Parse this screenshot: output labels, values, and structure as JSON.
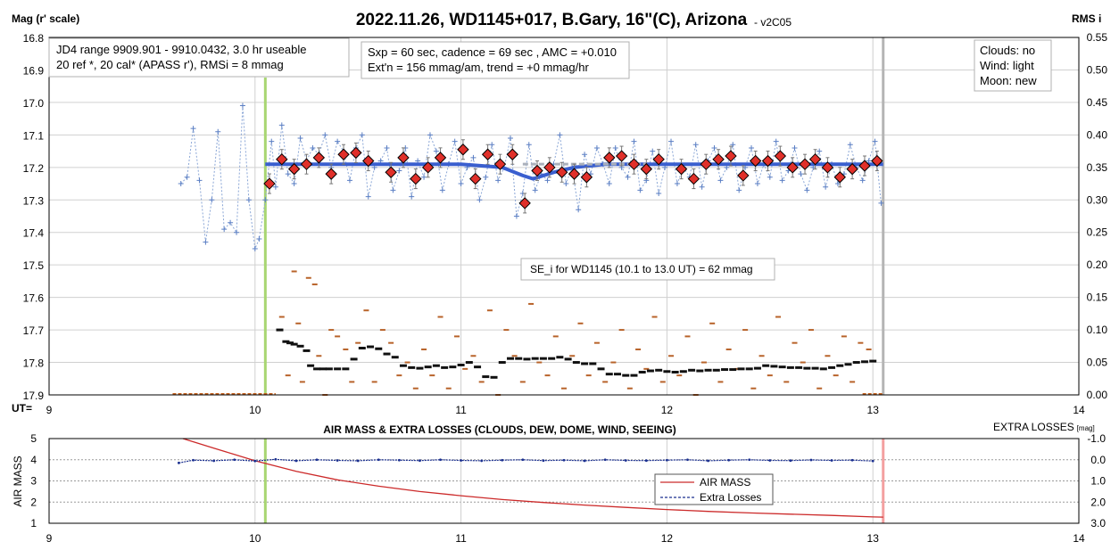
{
  "chart_data": [
    {
      "type": "scatter",
      "title": "2022.11.26, WD1145+017, B.Gary, 16\"(C), Arizona",
      "version": "- v2C05",
      "ylabel_left": "Mag (r' scale)",
      "ylabel_right": "RMS i",
      "xlabel": "UT=",
      "xlim": [
        9,
        14
      ],
      "xticks": [
        "9",
        "10",
        "11",
        "12",
        "13",
        "14"
      ],
      "ylim_left": [
        16.8,
        17.9
      ],
      "yticks_left": [
        "16.8",
        "16.9",
        "17.0",
        "17.1",
        "17.2",
        "17.3",
        "17.4",
        "17.5",
        "17.6",
        "17.7",
        "17.8",
        "17.9"
      ],
      "ylim_right": [
        0,
        0.55
      ],
      "yticks_right": [
        "0.55",
        "0.50",
        "0.45",
        "0.40",
        "0.35",
        "0.30",
        "0.25",
        "0.20",
        "0.15",
        "0.10",
        "0.05",
        "0.00"
      ],
      "info_box_1": [
        "JD4 range 9909.901 - 9910.0432, 3.0 hr useable",
        "20 ref *, 20 cal*  (APASS r'), RMSi = 8 mmag"
      ],
      "info_box_2": [
        "Sxp = 60 sec, cadence = 69 sec , AMC = +0.010",
        "Ext'n = 156 mmag/am, trend = +0 mmag/hr"
      ],
      "info_box_3": [
        "Clouds: no",
        "Wind:  light",
        "Moon:  new"
      ],
      "annotation": "SE_i for WD1145 (10.1 to 13.0 UT) = 62 mmag",
      "markers": {
        "green_start": 10.05,
        "gray_end": 13.05
      },
      "binned_points": {
        "x": [
          10.07,
          10.13,
          10.19,
          10.25,
          10.31,
          10.37,
          10.43,
          10.49,
          10.55,
          10.66,
          10.72,
          10.78,
          10.84,
          10.9,
          11.01,
          11.07,
          11.13,
          11.19,
          11.25,
          11.31,
          11.37,
          11.43,
          11.49,
          11.55,
          11.61,
          11.72,
          11.78,
          11.84,
          11.9,
          11.96,
          12.07,
          12.13,
          12.19,
          12.25,
          12.31,
          12.37,
          12.43,
          12.49,
          12.55,
          12.61,
          12.67,
          12.72,
          12.78,
          12.84,
          12.9,
          12.96,
          13.02
        ],
        "y": [
          17.25,
          17.175,
          17.205,
          17.19,
          17.17,
          17.22,
          17.16,
          17.155,
          17.18,
          17.215,
          17.17,
          17.235,
          17.2,
          17.17,
          17.145,
          17.235,
          17.16,
          17.19,
          17.16,
          17.31,
          17.21,
          17.2,
          17.215,
          17.22,
          17.23,
          17.17,
          17.165,
          17.19,
          17.205,
          17.175,
          17.205,
          17.235,
          17.19,
          17.175,
          17.165,
          17.225,
          17.18,
          17.18,
          17.165,
          17.2,
          17.19,
          17.175,
          17.2,
          17.23,
          17.205,
          17.195,
          17.18
        ]
      },
      "unbinned_points": {
        "x": [
          9.64,
          9.67,
          9.7,
          9.73,
          9.76,
          9.79,
          9.82,
          9.85,
          9.88,
          9.91,
          9.94,
          9.97,
          10.0,
          10.02,
          10.05,
          10.08,
          10.1,
          10.13,
          10.16,
          10.19,
          10.22,
          10.25,
          10.28,
          10.31,
          10.34,
          10.37,
          10.4,
          10.43,
          10.46,
          10.49,
          10.52,
          10.55,
          10.58,
          10.61,
          10.64,
          10.67,
          10.7,
          10.73,
          10.76,
          10.79,
          10.82,
          10.85,
          10.88,
          10.91,
          10.94,
          10.97,
          11.0,
          11.03,
          11.06,
          11.09,
          11.12,
          11.15,
          11.18,
          11.21,
          11.24,
          11.27,
          11.3,
          11.33,
          11.36,
          11.39,
          11.42,
          11.45,
          11.48,
          11.51,
          11.54,
          11.57,
          11.6,
          11.63,
          11.66,
          11.69,
          11.72,
          11.75,
          11.78,
          11.81,
          11.84,
          11.87,
          11.9,
          11.93,
          11.96,
          11.99,
          12.02,
          12.05,
          12.08,
          12.11,
          12.14,
          12.17,
          12.2,
          12.23,
          12.26,
          12.29,
          12.32,
          12.35,
          12.38,
          12.41,
          12.44,
          12.47,
          12.5,
          12.53,
          12.56,
          12.59,
          12.62,
          12.65,
          12.68,
          12.71,
          12.74,
          12.77,
          12.8,
          12.83,
          12.86,
          12.89,
          12.92,
          12.95,
          12.98,
          13.01,
          13.04
        ],
        "y": [
          17.25,
          17.23,
          17.08,
          17.24,
          17.43,
          17.3,
          17.09,
          17.39,
          17.37,
          17.4,
          17.01,
          17.3,
          17.45,
          17.42,
          17.3,
          17.12,
          17.26,
          17.07,
          17.22,
          17.25,
          17.11,
          17.18,
          17.14,
          17.16,
          17.1,
          17.2,
          17.12,
          17.15,
          17.24,
          17.14,
          17.1,
          17.29,
          17.2,
          17.18,
          17.14,
          17.27,
          17.21,
          17.14,
          17.29,
          17.18,
          17.23,
          17.1,
          17.15,
          17.27,
          17.19,
          17.12,
          17.25,
          17.2,
          17.17,
          17.3,
          17.23,
          17.13,
          17.24,
          17.2,
          17.11,
          17.35,
          17.28,
          17.13,
          17.27,
          17.22,
          17.24,
          17.19,
          17.1,
          17.25,
          17.2,
          17.33,
          17.16,
          17.22,
          17.14,
          17.19,
          17.25,
          17.14,
          17.2,
          17.23,
          17.12,
          17.27,
          17.24,
          17.15,
          17.28,
          17.2,
          17.12,
          17.25,
          17.2,
          17.23,
          17.13,
          17.26,
          17.18,
          17.14,
          17.24,
          17.2,
          17.13,
          17.27,
          17.2,
          17.14,
          17.25,
          17.19,
          17.23,
          17.12,
          17.24,
          17.21,
          17.14,
          17.22,
          17.27,
          17.2,
          17.15,
          17.26,
          17.19,
          17.25,
          17.22,
          17.13,
          17.2,
          17.24,
          17.18,
          17.12,
          17.31
        ]
      },
      "trend_line": {
        "x": [
          10.05,
          11.0,
          11.2,
          11.3,
          11.35,
          11.45,
          11.55,
          11.7,
          13.05
        ],
        "y": [
          17.19,
          17.19,
          17.2,
          17.225,
          17.235,
          17.215,
          17.2,
          17.19,
          17.19
        ]
      },
      "rms_series": {
        "x": [
          10.12,
          10.15,
          10.17,
          10.19,
          10.22,
          10.25,
          10.27,
          10.3,
          10.33,
          10.36,
          10.4,
          10.44,
          10.48,
          10.52,
          10.56,
          10.6,
          10.64,
          10.68,
          10.72,
          10.76,
          10.8,
          10.84,
          10.88,
          10.92,
          10.96,
          11.0,
          11.04,
          11.08,
          11.12,
          11.16,
          11.2,
          11.24,
          11.28,
          11.32,
          11.36,
          11.4,
          11.44,
          11.48,
          11.52,
          11.56,
          11.6,
          11.64,
          11.68,
          11.72,
          11.76,
          11.8,
          11.84,
          11.88,
          11.92,
          11.96,
          12.0,
          12.04,
          12.08,
          12.12,
          12.16,
          12.2,
          12.24,
          12.28,
          12.32,
          12.36,
          12.4,
          12.44,
          12.48,
          12.52,
          12.56,
          12.6,
          12.64,
          12.68,
          12.72,
          12.76,
          12.8,
          12.84,
          12.88,
          12.92,
          12.96,
          13.0
        ],
        "y": [
          0.1,
          0.082,
          0.08,
          0.078,
          0.075,
          0.068,
          0.045,
          0.04,
          0.04,
          0.04,
          0.04,
          0.04,
          0.055,
          0.072,
          0.074,
          0.071,
          0.063,
          0.058,
          0.045,
          0.042,
          0.041,
          0.043,
          0.045,
          0.042,
          0.043,
          0.046,
          0.05,
          0.043,
          0.028,
          0.027,
          0.05,
          0.056,
          0.056,
          0.055,
          0.056,
          0.056,
          0.056,
          0.058,
          0.055,
          0.05,
          0.048,
          0.048,
          0.04,
          0.032,
          0.032,
          0.03,
          0.03,
          0.035,
          0.037,
          0.038,
          0.036,
          0.035,
          0.036,
          0.038,
          0.037,
          0.038,
          0.038,
          0.039,
          0.039,
          0.04,
          0.04,
          0.041,
          0.045,
          0.044,
          0.043,
          0.042,
          0.042,
          0.041,
          0.041,
          0.04,
          0.042,
          0.045,
          0.047,
          0.05,
          0.051,
          0.052
        ]
      },
      "scatter_orange": {
        "x": [
          10.13,
          10.16,
          10.19,
          10.21,
          10.23,
          10.26,
          10.29,
          10.31,
          10.34,
          10.37,
          10.4,
          10.44,
          10.47,
          10.5,
          10.54,
          10.58,
          10.62,
          10.66,
          10.7,
          10.74,
          10.78,
          10.82,
          10.86,
          10.9,
          10.94,
          10.98,
          11.02,
          11.06,
          11.1,
          11.14,
          11.18,
          11.22,
          11.26,
          11.3,
          11.34,
          11.38,
          11.42,
          11.46,
          11.5,
          11.54,
          11.58,
          11.62,
          11.66,
          11.7,
          11.74,
          11.78,
          11.82,
          11.86,
          11.9,
          11.94,
          11.98,
          12.02,
          12.06,
          12.1,
          12.14,
          12.18,
          12.22,
          12.26,
          12.3,
          12.34,
          12.38,
          12.42,
          12.46,
          12.5,
          12.54,
          12.58,
          12.62,
          12.66,
          12.7,
          12.74,
          12.78,
          12.82,
          12.86,
          12.9,
          12.94,
          12.98
        ],
        "y": [
          0.12,
          0.03,
          0.19,
          0.11,
          0.02,
          0.18,
          0.17,
          0.06,
          0.0,
          0.1,
          0.09,
          0.07,
          0.02,
          0.08,
          0.13,
          0.02,
          0.1,
          0.08,
          0.03,
          0.05,
          0.01,
          0.07,
          0.03,
          0.12,
          0.01,
          0.09,
          0.04,
          0.06,
          0.02,
          0.13,
          0.0,
          0.1,
          0.06,
          0.02,
          0.14,
          0.05,
          0.03,
          0.09,
          0.01,
          0.06,
          0.11,
          0.03,
          0.08,
          0.02,
          0.05,
          0.1,
          0.01,
          0.07,
          0.04,
          0.12,
          0.02,
          0.06,
          0.03,
          0.09,
          0.0,
          0.05,
          0.11,
          0.02,
          0.07,
          0.04,
          0.1,
          0.01,
          0.06,
          0.03,
          0.12,
          0.02,
          0.08,
          0.05,
          0.1,
          0.01,
          0.06,
          0.03,
          0.09,
          0.02,
          0.08,
          0.07
        ]
      }
    },
    {
      "type": "line",
      "title": "AIR MASS & EXTRA LOSSES (CLOUDS, DEW, DOME, WIND, SEEING)",
      "ylabel_left": "AIR MASS",
      "ylabel_right_main": "EXTRA LOSSES",
      "ylabel_right_unit": "[mag]",
      "xlim": [
        9,
        14
      ],
      "xticks": [
        "9",
        "10",
        "11",
        "12",
        "13",
        "14"
      ],
      "ylim_left": [
        1,
        5
      ],
      "yticks_left": [
        "5",
        "4",
        "3",
        "2",
        "1"
      ],
      "ylim_right": [
        -1.0,
        3.0
      ],
      "yticks_right": [
        "-1.0",
        "0.0",
        "1.0",
        "2.0",
        "3.0"
      ],
      "legend": [
        "AIR MASS",
        "Extra Losses"
      ],
      "airmass": {
        "x": [
          9.65,
          9.8,
          10.0,
          10.2,
          10.4,
          10.6,
          10.8,
          11.0,
          11.2,
          11.4,
          11.6,
          11.8,
          12.0,
          12.2,
          12.4,
          12.6,
          12.8,
          13.0,
          13.05
        ],
        "y": [
          5.0,
          4.55,
          3.95,
          3.45,
          3.05,
          2.75,
          2.5,
          2.3,
          2.12,
          1.98,
          1.86,
          1.75,
          1.65,
          1.56,
          1.49,
          1.43,
          1.37,
          1.3,
          1.29
        ]
      },
      "extra_losses": {
        "x": [
          9.63,
          9.7,
          9.8,
          9.9,
          10.0,
          10.1,
          10.2,
          10.3,
          10.4,
          10.5,
          10.6,
          10.7,
          10.8,
          10.9,
          11.0,
          11.1,
          11.2,
          11.3,
          11.4,
          11.5,
          11.6,
          11.7,
          11.8,
          11.9,
          12.0,
          12.1,
          12.2,
          12.3,
          12.4,
          12.5,
          12.6,
          12.7,
          12.8,
          12.9,
          13.0
        ],
        "y": [
          0.15,
          0.02,
          0.05,
          0.0,
          0.06,
          -0.02,
          0.05,
          0.0,
          0.03,
          0.05,
          0.0,
          0.02,
          0.04,
          0.0,
          0.03,
          0.05,
          0.02,
          0.0,
          0.04,
          0.02,
          0.05,
          0.0,
          0.03,
          0.04,
          0.02,
          0.0,
          0.05,
          0.02,
          0.0,
          0.03,
          0.04,
          0.01,
          0.03,
          0.02,
          0.06
        ]
      },
      "markers": {
        "green": 10.05,
        "red": 13.05
      }
    }
  ]
}
